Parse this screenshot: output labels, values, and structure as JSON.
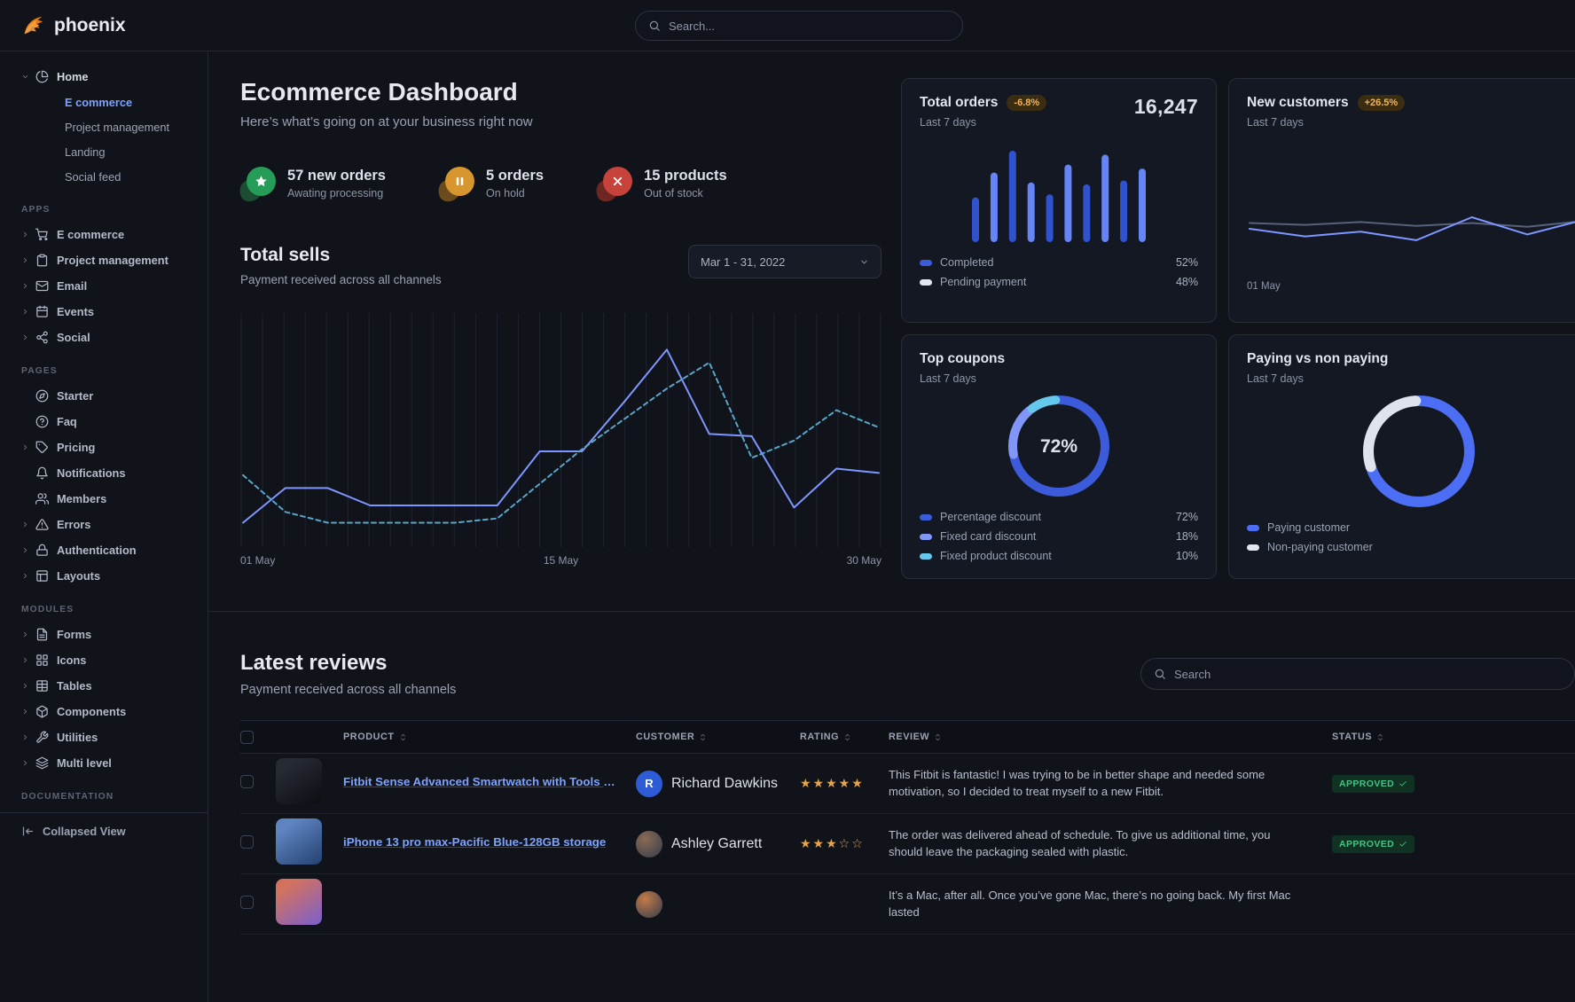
{
  "navbar": {
    "brand": "phoenix",
    "search_placeholder": "Search..."
  },
  "sidebar": {
    "home": {
      "label": "Home",
      "icon": "pie-chart",
      "expanded": true,
      "children": [
        {
          "label": "E commerce",
          "active": true
        },
        {
          "label": "Project management",
          "active": false
        },
        {
          "label": "Landing",
          "active": false
        },
        {
          "label": "Social feed",
          "active": false
        }
      ]
    },
    "sections": [
      {
        "title": "APPS",
        "items": [
          {
            "label": "E commerce",
            "icon": "shopping-cart",
            "expandable": true
          },
          {
            "label": "Project management",
            "icon": "clipboard",
            "expandable": true
          },
          {
            "label": "Email",
            "icon": "mail",
            "expandable": true
          },
          {
            "label": "Events",
            "icon": "calendar",
            "expandable": true
          },
          {
            "label": "Social",
            "icon": "share",
            "expandable": true
          }
        ]
      },
      {
        "title": "PAGES",
        "items": [
          {
            "label": "Starter",
            "icon": "compass",
            "expandable": false
          },
          {
            "label": "Faq",
            "icon": "help-circle",
            "expandable": false
          },
          {
            "label": "Pricing",
            "icon": "tag",
            "expandable": true
          },
          {
            "label": "Notifications",
            "icon": "bell",
            "expandable": false
          },
          {
            "label": "Members",
            "icon": "users",
            "expandable": false
          },
          {
            "label": "Errors",
            "icon": "alert-triangle",
            "expandable": true
          },
          {
            "label": "Authentication",
            "icon": "lock",
            "expandable": true
          },
          {
            "label": "Layouts",
            "icon": "layout",
            "expandable": true
          }
        ]
      },
      {
        "title": "MODULES",
        "items": [
          {
            "label": "Forms",
            "icon": "file-text",
            "expandable": true
          },
          {
            "label": "Icons",
            "icon": "grid",
            "expandable": true
          },
          {
            "label": "Tables",
            "icon": "table",
            "expandable": true
          },
          {
            "label": "Components",
            "icon": "package",
            "expandable": true
          },
          {
            "label": "Utilities",
            "icon": "tool",
            "expandable": true
          },
          {
            "label": "Multi level",
            "icon": "layers",
            "expandable": true
          }
        ]
      },
      {
        "title": "DOCUMENTATION",
        "items": []
      }
    ],
    "collapse_label": "Collapsed View"
  },
  "header": {
    "title": "Ecommerce Dashboard",
    "subtitle": "Here’s what’s going on at your business right now"
  },
  "stats": [
    {
      "value": "57 new orders",
      "caption": "Awating processing",
      "icon": "star",
      "theme": "success"
    },
    {
      "value": "5 orders",
      "caption": "On hold",
      "icon": "pause",
      "theme": "warning"
    },
    {
      "value": "15 products",
      "caption": "Out of stock",
      "icon": "x",
      "theme": "danger"
    }
  ],
  "total_sells": {
    "title": "Total sells",
    "subtitle": "Payment received across all channels",
    "date_range": "Mar 1 - 31, 2022"
  },
  "cards": {
    "total_orders": {
      "title": "Total orders",
      "badge": "-6.8%",
      "period": "Last 7 days",
      "value": "16,247",
      "legend": [
        {
          "label": "Completed",
          "value": "52%",
          "color": "#3b5bdb"
        },
        {
          "label": "Pending payment",
          "value": "48%",
          "color": "#e3e6ed"
        }
      ]
    },
    "new_customers": {
      "title": "New customers",
      "badge": "+26.5%",
      "period": "Last 7 days",
      "x_label": "01 May"
    },
    "top_coupons": {
      "title": "Top coupons",
      "period": "Last 7 days",
      "center_label": "72%",
      "legend": [
        {
          "label": "Percentage discount",
          "value": "72%",
          "color": "#3b5bdb"
        },
        {
          "label": "Fixed card discount",
          "value": "18%",
          "color": "#8296f8"
        },
        {
          "label": "Fixed product discount",
          "value": "10%",
          "color": "#64c8ec"
        }
      ]
    },
    "paying": {
      "title": "Paying vs non paying",
      "period": "Last 7 days",
      "legend": [
        {
          "label": "Paying customer",
          "color": "#4c6ef5"
        },
        {
          "label": "Non-paying customer",
          "color": "#e3e6ed"
        }
      ]
    }
  },
  "chart_data": [
    {
      "id": "total-sells",
      "type": "line",
      "title": "Total sells",
      "x_ticks": [
        "01 May",
        "15 May",
        "30 May"
      ],
      "ylim": [
        0,
        100
      ],
      "grid": "vertical",
      "series": [
        {
          "name": "Sells",
          "style": "solid",
          "color": "#7e96ff",
          "values": [
            8,
            24,
            24,
            16,
            16,
            16,
            16,
            41,
            41,
            64,
            88,
            49,
            48,
            15,
            33,
            31
          ]
        },
        {
          "name": "Comparison",
          "style": "dashed",
          "color": "#58a6c9",
          "values": [
            30,
            13,
            8,
            8,
            8,
            8,
            10,
            26,
            42,
            56,
            70,
            82,
            38,
            46,
            60,
            52
          ]
        }
      ]
    },
    {
      "id": "total-orders",
      "type": "bar",
      "title": "Total orders - Last 7 days",
      "values": [
        45,
        70,
        92,
        60,
        48,
        78,
        58,
        88,
        62,
        74
      ],
      "colors": [
        "#3052cc",
        "#6584f5"
      ],
      "legend": [
        {
          "label": "Completed",
          "value": 52
        },
        {
          "label": "Pending payment",
          "value": 48
        }
      ]
    },
    {
      "id": "new-customers",
      "type": "line",
      "title": "New customers - Last 7 days",
      "x_ticks": [
        "01 May"
      ],
      "ylim": [
        0,
        100
      ],
      "series": [
        {
          "name": "Previous period",
          "style": "solid",
          "color": "#57617a",
          "values": [
            44,
            42,
            45,
            41,
            44,
            40,
            46
          ]
        },
        {
          "name": "New customers",
          "style": "solid",
          "color": "#7e96ff",
          "values": [
            38,
            30,
            35,
            26,
            50,
            32,
            47
          ]
        }
      ]
    },
    {
      "id": "top-coupons",
      "type": "pie",
      "title": "Top coupons - Last 7 days",
      "center_label": "72%",
      "slices": [
        {
          "label": "Percentage discount",
          "value": 72,
          "color": "#3b5bdb"
        },
        {
          "label": "Fixed card discount",
          "value": 18,
          "color": "#8296f8"
        },
        {
          "label": "Fixed product discount",
          "value": 10,
          "color": "#64c8ec"
        }
      ]
    },
    {
      "id": "paying-vs-nonpaying",
      "type": "pie",
      "title": "Paying vs non paying - Last 7 days",
      "slices": [
        {
          "label": "Paying customer",
          "value": 70,
          "color": "#4c6ef5"
        },
        {
          "label": "Non-paying customer",
          "value": 30,
          "color": "#dfe3ec"
        }
      ]
    }
  ],
  "reviews": {
    "title": "Latest reviews",
    "subtitle": "Payment received across all channels",
    "search_placeholder": "Search",
    "columns": [
      {
        "label": "PRODUCT",
        "sortable": true
      },
      {
        "label": "CUSTOMER",
        "sortable": true
      },
      {
        "label": "RATING",
        "sortable": true
      },
      {
        "label": "REVIEW",
        "sortable": true
      },
      {
        "label": "STATUS",
        "sortable": true
      }
    ],
    "rows": [
      {
        "product": "Fitbit Sense Advanced Smartwatch with Tools fo...",
        "thumb": [
          "#262a33",
          "#0b0d12"
        ],
        "customer": "Richard Dawkins",
        "avatar": {
          "type": "initial",
          "text": "R",
          "bg": "#2e5cd6"
        },
        "rating": 5,
        "review": "This Fitbit is fantastic! I was trying to be in better shape and needed some motivation, so I decided to treat myself to a new Fitbit.",
        "status": "APPROVED"
      },
      {
        "product": "iPhone 13 pro max-Pacific Blue-128GB storage",
        "thumb": [
          "#5e84c2",
          "#24406e"
        ],
        "customer": "Ashley Garrett",
        "avatar": {
          "type": "photo",
          "text": "",
          "bg": "#8a6a52"
        },
        "rating": 3,
        "review": "The order was delivered ahead of schedule. To give us additional time, you should leave the packaging sealed with plastic.",
        "status": "APPROVED"
      },
      {
        "product": "",
        "thumb": [
          "#d2725e",
          "#7a5fd0"
        ],
        "customer": "",
        "avatar": {
          "type": "photo",
          "text": "",
          "bg": "#c27a45"
        },
        "rating": 0,
        "review": "It’s a Mac, after all. Once you’ve gone Mac, there’s no going back. My first Mac lasted",
        "status": ""
      }
    ]
  }
}
